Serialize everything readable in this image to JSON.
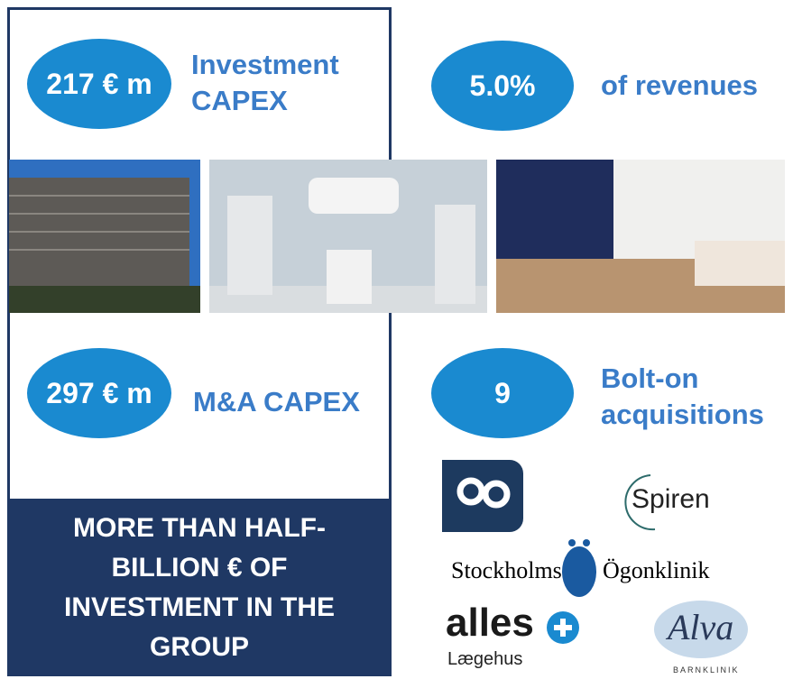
{
  "stats": [
    {
      "value": "217 € m",
      "label": "Investment CAPEX"
    },
    {
      "value": "5.0%",
      "label": "of revenues"
    },
    {
      "value": "297 € m",
      "label": "M&A CAPEX"
    },
    {
      "value": "9",
      "label": "Bolt-on acquisitions"
    }
  ],
  "banner": "MORE THAN HALF-BILLION € OF INVESTMENT IN THE GROUP",
  "logos": {
    "spiren": "Spiren",
    "stockholms": "Stockholms",
    "ogonklinik": "Ögonklinik",
    "alles": "alles",
    "laegehus": "Lægehus",
    "alva": "Alva",
    "barnklinik": "BARNKLINIK"
  }
}
